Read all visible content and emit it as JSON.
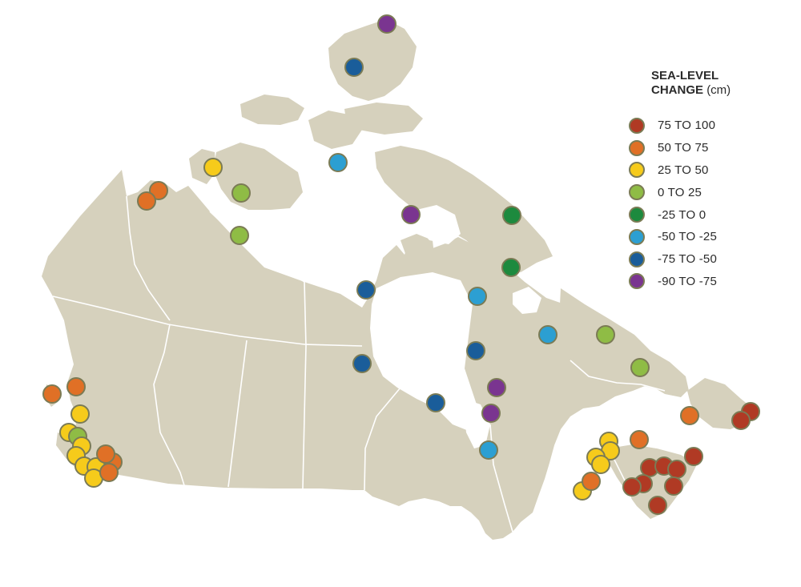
{
  "legend": {
    "title_line1": "SEA-LEVEL",
    "title_line2": "CHANGE",
    "unit": "(cm)",
    "classes": [
      {
        "id": "c75_100",
        "label": "75 TO 100",
        "color": "#b03a24"
      },
      {
        "id": "c50_75",
        "label": "50 TO 75",
        "color": "#e07026"
      },
      {
        "id": "c25_50",
        "label": "25 TO 50",
        "color": "#f6cb1b"
      },
      {
        "id": "c0_25",
        "label": "0 TO 25",
        "color": "#8fbc45"
      },
      {
        "id": "cm25_0",
        "label": "-25 TO 0",
        "color": "#1d8a3e"
      },
      {
        "id": "cm50_m25",
        "label": "-50 TO -25",
        "color": "#2c9fd2"
      },
      {
        "id": "cm75_m50",
        "label": "-75 TO -50",
        "color": "#1a5d9a"
      },
      {
        "id": "cm90_m75",
        "label": "-90 TO -75",
        "color": "#7a3590"
      }
    ]
  },
  "colors": {
    "land": "#d6d1bd",
    "water": "#ffffff",
    "border": "#ffffff",
    "marker_outline": "#7b7b55"
  }
}
